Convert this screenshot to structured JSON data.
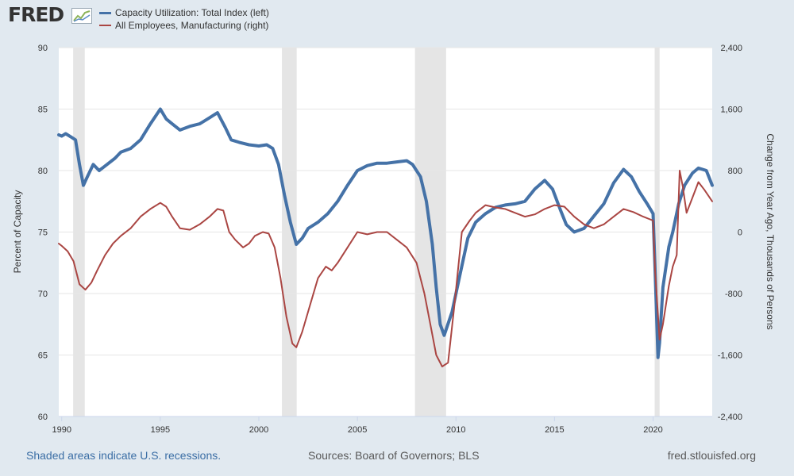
{
  "header": {
    "logo_text": "FRED",
    "logo_icon": "chart-line-icon"
  },
  "legend": {
    "items": [
      {
        "label": "Capacity Utilization: Total Index (left)",
        "color": "#4572a7"
      },
      {
        "label": "All Employees, Manufacturing (right)",
        "color": "#aa4643"
      }
    ]
  },
  "footer": {
    "recession_note": "Shaded areas indicate U.S. recessions.",
    "sources": "Sources: Board of Governors; BLS",
    "site": "fred.stlouisfed.org"
  },
  "chart_data": {
    "type": "line",
    "title": "",
    "xlabel": "",
    "ylabel_left": "Percent of Capacity",
    "ylabel_right": "Change from Year Ago, Thousands of Persons",
    "xlim": [
      1989.85,
      2023.0
    ],
    "ylim_left": [
      60,
      90
    ],
    "ylim_right": [
      -2400,
      2400
    ],
    "x_ticks": [
      1990,
      1995,
      2000,
      2005,
      2010,
      2015,
      2020
    ],
    "x_tick_labels": [
      "1990",
      "1995",
      "2000",
      "2005",
      "2010",
      "2015",
      "2020"
    ],
    "y_left_ticks": [
      60,
      65,
      70,
      75,
      80,
      85,
      90
    ],
    "y_left_tick_labels": [
      "60",
      "65",
      "70",
      "75",
      "80",
      "85",
      "90"
    ],
    "y_right_ticks": [
      -2400,
      -1600,
      -800,
      0,
      800,
      1600,
      2400
    ],
    "y_right_tick_labels": [
      "-2,400",
      "-1,600",
      "-800",
      "0",
      "800",
      "1,600",
      "2,400"
    ],
    "grid": true,
    "recessions": [
      [
        1990.58,
        1991.17
      ],
      [
        2001.17,
        2001.92
      ],
      [
        2007.92,
        2009.5
      ],
      [
        2020.08,
        2020.33
      ]
    ],
    "series": [
      {
        "name": "Capacity Utilization: Total Index (left)",
        "axis": "left",
        "color": "#4572a7",
        "x": [
          1989.85,
          1990.0,
          1990.2,
          1990.5,
          1990.7,
          1990.9,
          1991.1,
          1991.3,
          1991.6,
          1991.9,
          1992.3,
          1992.7,
          1993.0,
          1993.5,
          1994.0,
          1994.5,
          1995.0,
          1995.3,
          1995.6,
          1996.0,
          1996.5,
          1997.0,
          1997.5,
          1997.9,
          1998.3,
          1998.6,
          1999.0,
          1999.5,
          2000.0,
          2000.4,
          2000.7,
          2001.0,
          2001.3,
          2001.6,
          2001.9,
          2002.2,
          2002.5,
          2003.0,
          2003.5,
          2004.0,
          2004.5,
          2005.0,
          2005.5,
          2006.0,
          2006.5,
          2007.0,
          2007.5,
          2007.8,
          2008.2,
          2008.5,
          2008.8,
          2009.0,
          2009.2,
          2009.4,
          2009.8,
          2010.2,
          2010.6,
          2011.0,
          2011.5,
          2012.0,
          2012.5,
          2013.0,
          2013.5,
          2014.0,
          2014.5,
          2014.9,
          2015.3,
          2015.6,
          2016.0,
          2016.5,
          2017.0,
          2017.5,
          2018.0,
          2018.5,
          2018.9,
          2019.3,
          2019.7,
          2020.0,
          2020.1,
          2020.25,
          2020.33,
          2020.5,
          2020.8,
          2021.0,
          2021.3,
          2021.6,
          2022.0,
          2022.3,
          2022.7,
          2023.0
        ],
        "values": [
          82.9,
          82.8,
          83.0,
          82.7,
          82.5,
          80.5,
          78.8,
          79.5,
          80.5,
          80.0,
          80.5,
          81.0,
          81.5,
          81.8,
          82.5,
          83.8,
          85.0,
          84.2,
          83.8,
          83.3,
          83.6,
          83.8,
          84.3,
          84.7,
          83.5,
          82.5,
          82.3,
          82.1,
          82.0,
          82.1,
          81.8,
          80.5,
          78.0,
          75.8,
          74.0,
          74.5,
          75.3,
          75.8,
          76.5,
          77.5,
          78.8,
          80.0,
          80.4,
          80.6,
          80.6,
          80.7,
          80.8,
          80.5,
          79.5,
          77.5,
          74.0,
          70.5,
          67.5,
          66.6,
          68.5,
          71.5,
          74.5,
          75.8,
          76.5,
          77.0,
          77.2,
          77.3,
          77.5,
          78.5,
          79.2,
          78.5,
          76.8,
          75.6,
          75.0,
          75.3,
          76.3,
          77.3,
          79.0,
          80.1,
          79.5,
          78.3,
          77.3,
          76.5,
          72.0,
          64.8,
          66.0,
          70.5,
          73.8,
          75.0,
          77.3,
          78.8,
          79.8,
          80.2,
          80.0,
          78.8
        ]
      },
      {
        "name": "All Employees, Manufacturing (right)",
        "axis": "right",
        "color": "#aa4643",
        "x": [
          1989.85,
          1990.0,
          1990.3,
          1990.6,
          1990.9,
          1991.2,
          1991.5,
          1991.8,
          1992.2,
          1992.6,
          1993.0,
          1993.5,
          1994.0,
          1994.5,
          1995.0,
          1995.3,
          1995.6,
          1996.0,
          1996.5,
          1997.0,
          1997.5,
          1997.9,
          1998.2,
          1998.5,
          1998.8,
          1999.2,
          1999.5,
          1999.8,
          2000.2,
          2000.5,
          2000.8,
          2001.1,
          2001.4,
          2001.7,
          2001.9,
          2002.2,
          2002.6,
          2003.0,
          2003.4,
          2003.7,
          2004.0,
          2004.5,
          2005.0,
          2005.5,
          2006.0,
          2006.5,
          2007.0,
          2007.5,
          2008.0,
          2008.4,
          2008.7,
          2009.0,
          2009.3,
          2009.6,
          2009.9,
          2010.3,
          2010.7,
          2011.0,
          2011.5,
          2012.0,
          2012.5,
          2013.0,
          2013.5,
          2014.0,
          2014.5,
          2015.0,
          2015.5,
          2016.0,
          2016.5,
          2017.0,
          2017.5,
          2018.0,
          2018.5,
          2019.0,
          2019.5,
          2020.0,
          2020.1,
          2020.33,
          2020.5,
          2020.8,
          2021.0,
          2021.2,
          2021.35,
          2021.5,
          2021.7,
          2022.0,
          2022.3,
          2022.6,
          2023.0
        ],
        "values": [
          -150,
          -180,
          -250,
          -380,
          -680,
          -750,
          -660,
          -500,
          -300,
          -150,
          -50,
          50,
          200,
          300,
          380,
          330,
          200,
          50,
          30,
          100,
          200,
          300,
          280,
          0,
          -100,
          -200,
          -150,
          -50,
          0,
          -20,
          -200,
          -600,
          -1100,
          -1450,
          -1500,
          -1300,
          -950,
          -600,
          -450,
          -500,
          -400,
          -200,
          0,
          -30,
          0,
          0,
          -100,
          -200,
          -400,
          -800,
          -1200,
          -1600,
          -1750,
          -1700,
          -1000,
          0,
          150,
          250,
          350,
          320,
          300,
          250,
          200,
          230,
          300,
          350,
          330,
          200,
          100,
          50,
          100,
          200,
          300,
          260,
          200,
          150,
          -500,
          -1400,
          -1200,
          -700,
          -450,
          -300,
          800,
          600,
          250,
          450,
          650,
          550,
          400
        ]
      }
    ]
  }
}
